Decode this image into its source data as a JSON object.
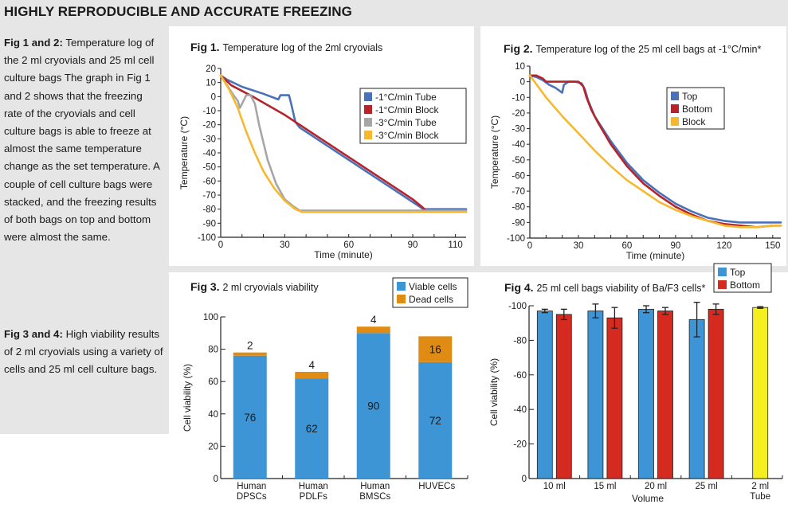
{
  "header": {
    "title": "HIGHLY REPRODUCIBLE AND ACCURATE FREEZING"
  },
  "sidebar": {
    "para1_bold": "Fig 1 and 2:",
    "para1_text": " Temperature log of the 2 ml cryovials and 25 ml cell culture bags The graph in Fig 1 and 2 shows that the freezing rate of the cryovials and cell culture bags is able to freeze at almost the same temperature change as the set temperature. A couple of cell culture bags were stacked, and the freezing results of both bags on top and bottom were almost the same.",
    "para2_bold": "Fig 3 and 4:",
    "para2_text": " High viability results of 2 ml cryovials using a variety of cells and 25 ml cell culture bags."
  },
  "chart_data": [
    {
      "id": "fig1",
      "type": "line",
      "fig_label": "Fig 1.",
      "title": "Temperature log of the 2ml cryovials",
      "xlabel": "Time (minute)",
      "ylabel": "Temperature (°C)",
      "xlim": [
        0,
        115
      ],
      "ylim": [
        -100,
        20
      ],
      "xticks": [
        0,
        30,
        60,
        90,
        110
      ],
      "yticks": [
        20,
        10,
        0,
        -10,
        -20,
        -30,
        -40,
        -50,
        -60,
        -70,
        -80,
        -90,
        -100
      ],
      "grid": false,
      "legend_position": "top-right",
      "series": [
        {
          "name": "-1°C/min Tube",
          "color": "#4a72b8",
          "points": [
            [
              0,
              15
            ],
            [
              3,
              12
            ],
            [
              10,
              7
            ],
            [
              20,
              2
            ],
            [
              27,
              -2
            ],
            [
              28,
              1
            ],
            [
              30,
              1
            ],
            [
              32,
              1
            ],
            [
              33,
              -5
            ],
            [
              35,
              -18
            ],
            [
              37,
              -22
            ],
            [
              45,
              -30
            ],
            [
              60,
              -45
            ],
            [
              75,
              -60
            ],
            [
              90,
              -75
            ],
            [
              95,
              -80
            ],
            [
              100,
              -80
            ],
            [
              115,
              -80
            ]
          ]
        },
        {
          "name": "-1°C/min Block",
          "color": "#b5242b",
          "points": [
            [
              0,
              15
            ],
            [
              5,
              8
            ],
            [
              15,
              0
            ],
            [
              30,
              -13
            ],
            [
              45,
              -28
            ],
            [
              60,
              -43
            ],
            [
              75,
              -58
            ],
            [
              90,
              -73
            ],
            [
              94,
              -78
            ],
            [
              97,
              -82
            ],
            [
              100,
              -82
            ],
            [
              115,
              -82
            ]
          ]
        },
        {
          "name": "-3°C/min Tube",
          "color": "#a6a6a6",
          "points": [
            [
              0,
              15
            ],
            [
              3,
              8
            ],
            [
              6,
              1
            ],
            [
              8,
              -3
            ],
            [
              9,
              -8
            ],
            [
              10,
              -5
            ],
            [
              12,
              1
            ],
            [
              14,
              1
            ],
            [
              16,
              -5
            ],
            [
              18,
              -20
            ],
            [
              22,
              -45
            ],
            [
              26,
              -62
            ],
            [
              30,
              -73
            ],
            [
              34,
              -78
            ],
            [
              37,
              -81
            ],
            [
              40,
              -81
            ],
            [
              115,
              -81
            ]
          ]
        },
        {
          "name": "-3°C/min Block",
          "color": "#f5b82e",
          "points": [
            [
              0,
              15
            ],
            [
              4,
              5
            ],
            [
              8,
              -8
            ],
            [
              12,
              -25
            ],
            [
              16,
              -40
            ],
            [
              20,
              -53
            ],
            [
              25,
              -65
            ],
            [
              30,
              -74
            ],
            [
              35,
              -80
            ],
            [
              38,
              -82
            ],
            [
              115,
              -82
            ]
          ]
        }
      ]
    },
    {
      "id": "fig2",
      "type": "line",
      "fig_label": "Fig 2.",
      "title": "Temperature log of the 25 ml cell bags at -1°C/min*",
      "xlabel": "Time (minute)",
      "ylabel": "Temperature (°C)",
      "xlim": [
        0,
        155
      ],
      "ylim": [
        -100,
        10
      ],
      "xticks": [
        0,
        30,
        60,
        90,
        120,
        150
      ],
      "yticks": [
        10,
        0,
        -10,
        -20,
        -30,
        -40,
        -50,
        -60,
        -70,
        -80,
        -90,
        -100
      ],
      "grid": false,
      "legend_position": "top-right",
      "series": [
        {
          "name": "Top",
          "color": "#4a72b8",
          "points": [
            [
              0,
              4
            ],
            [
              4,
              3
            ],
            [
              8,
              1
            ],
            [
              12,
              -2
            ],
            [
              16,
              -4
            ],
            [
              20,
              -7
            ],
            [
              21,
              -2
            ],
            [
              24,
              0
            ],
            [
              28,
              0
            ],
            [
              32,
              -1
            ],
            [
              34,
              -5
            ],
            [
              36,
              -12
            ],
            [
              40,
              -22
            ],
            [
              50,
              -38
            ],
            [
              60,
              -52
            ],
            [
              70,
              -63
            ],
            [
              80,
              -71
            ],
            [
              90,
              -78
            ],
            [
              100,
              -83
            ],
            [
              110,
              -87
            ],
            [
              120,
              -89
            ],
            [
              130,
              -90
            ],
            [
              140,
              -90
            ],
            [
              150,
              -90
            ],
            [
              155,
              -90
            ]
          ]
        },
        {
          "name": "Bottom",
          "color": "#b5242b",
          "points": [
            [
              0,
              4
            ],
            [
              4,
              4
            ],
            [
              8,
              2
            ],
            [
              10,
              0
            ],
            [
              14,
              0
            ],
            [
              20,
              0
            ],
            [
              26,
              0
            ],
            [
              30,
              0
            ],
            [
              33,
              -3
            ],
            [
              35,
              -10
            ],
            [
              38,
              -18
            ],
            [
              42,
              -26
            ],
            [
              50,
              -40
            ],
            [
              60,
              -54
            ],
            [
              70,
              -65
            ],
            [
              80,
              -73
            ],
            [
              90,
              -80
            ],
            [
              100,
              -85
            ],
            [
              110,
              -89
            ],
            [
              120,
              -91
            ],
            [
              130,
              -92
            ],
            [
              140,
              -93
            ],
            [
              150,
              -92
            ],
            [
              155,
              -92
            ]
          ]
        },
        {
          "name": "Block",
          "color": "#f5b82e",
          "points": [
            [
              0,
              4
            ],
            [
              5,
              -3
            ],
            [
              10,
              -10
            ],
            [
              20,
              -22
            ],
            [
              30,
              -33
            ],
            [
              40,
              -44
            ],
            [
              50,
              -54
            ],
            [
              60,
              -63
            ],
            [
              70,
              -70
            ],
            [
              80,
              -77
            ],
            [
              90,
              -82
            ],
            [
              100,
              -86
            ],
            [
              110,
              -89
            ],
            [
              120,
              -92
            ],
            [
              130,
              -93
            ],
            [
              140,
              -93
            ],
            [
              150,
              -92
            ],
            [
              155,
              -92
            ]
          ]
        }
      ]
    },
    {
      "id": "fig3",
      "type": "bar",
      "stacked": true,
      "fig_label": "Fig 3.",
      "title": "2 ml cryovials viability",
      "xlabel": "",
      "ylabel": "Cell viability (%)",
      "ylim": [
        0,
        100
      ],
      "yticks": [
        0,
        20,
        40,
        60,
        80,
        100
      ],
      "grid": false,
      "legend_position": "top-right",
      "categories": [
        "Human DPSCs",
        "Human PDLFs",
        "Human BMSCs",
        "HUVECs"
      ],
      "category_lines": [
        [
          "Human",
          "DPSCs"
        ],
        [
          "Human",
          "PDLFs"
        ],
        [
          "Human",
          "BMSCs"
        ],
        [
          "HUVECs"
        ]
      ],
      "series": [
        {
          "name": "Viable cells",
          "color": "#3d95d6",
          "values": [
            76,
            62,
            90,
            72
          ]
        },
        {
          "name": "Dead cells",
          "color": "#e08b14",
          "values": [
            2,
            4,
            4,
            16
          ]
        }
      ]
    },
    {
      "id": "fig4",
      "type": "bar",
      "fig_label": "Fig 4.",
      "title": "25 ml cell bags viability of Ba/F3 cells*",
      "xlabel": "Volume",
      "ylabel": "Cell viability (%)",
      "ylim": [
        0,
        100
      ],
      "yticks": [
        0,
        20,
        40,
        60,
        80,
        100
      ],
      "ytick_labels": [
        "0",
        "-20",
        "-40",
        "-60",
        "-80",
        "-100"
      ],
      "grid": false,
      "legend_position": "top-right",
      "categories": [
        "10 ml",
        "15 ml",
        "20 ml",
        "25 ml",
        "2 ml Tube"
      ],
      "category_lines": [
        [
          "10 ml"
        ],
        [
          "15 ml"
        ],
        [
          "20 ml"
        ],
        [
          "25 ml"
        ],
        [
          "2 ml",
          "Tube"
        ]
      ],
      "series": [
        {
          "name": "Top",
          "color": "#3d95d6",
          "values": [
            97,
            97,
            98,
            92,
            null
          ],
          "errors": [
            1,
            4,
            2,
            10,
            null
          ]
        },
        {
          "name": "Bottom",
          "color": "#d42a20",
          "values": [
            95,
            93,
            97,
            98,
            null
          ],
          "errors": [
            3,
            6,
            2,
            3,
            null
          ]
        },
        {
          "name": "2 ml Tube",
          "color": "#f5ef1f",
          "values": [
            null,
            null,
            null,
            null,
            99
          ],
          "errors": [
            null,
            null,
            null,
            null,
            0.5
          ],
          "in_legend": false
        }
      ]
    }
  ]
}
